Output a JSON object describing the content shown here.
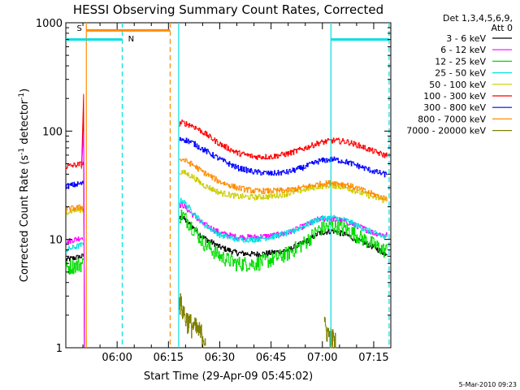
{
  "chart_data": {
    "type": "line",
    "title": "HESSI Observing Summary Count Rates, Corrected",
    "xlabel": "Start Time (29-Apr-09 05:45:02)",
    "ylabel_main": "Corrected Count Rate (s",
    "ylabel_sup1": "-1",
    "ylabel_mid": " detector",
    "ylabel_sup2": "-1",
    "ylabel_end": ")",
    "y_scale": "log",
    "ylim": [
      1,
      1000
    ],
    "xlim_minutes": [
      0,
      95
    ],
    "x_tick_labels": [
      {
        "t": 15,
        "label": "06:00"
      },
      {
        "t": 30,
        "label": "06:15"
      },
      {
        "t": 45,
        "label": "06:30"
      },
      {
        "t": 60,
        "label": "06:45"
      },
      {
        "t": 75,
        "label": "07:00"
      },
      {
        "t": 90,
        "label": "07:15"
      }
    ],
    "y_tick_labels": [
      {
        "v": 1,
        "label": "1"
      },
      {
        "v": 10,
        "label": "10"
      },
      {
        "v": 100,
        "label": "100"
      },
      {
        "v": 1000,
        "label": "1000"
      }
    ],
    "legend_header": [
      "Det 1,3,4,5,6,9,",
      "Att 0"
    ],
    "legend_position": "right",
    "timestamp": "5-Mar-2010 09:23",
    "flag_labels": [
      {
        "text": "S",
        "color": "#ff8c00"
      },
      {
        "text": "N",
        "color": "#00e0e0"
      }
    ],
    "series": [
      {
        "name": "3 - 6 keV",
        "color": "#000000",
        "values": [
          [
            0,
            6.5
          ],
          [
            5,
            7.0
          ],
          [
            34,
            16.0
          ],
          [
            37,
            13.0
          ],
          [
            40,
            10.5
          ],
          [
            45,
            8.5
          ],
          [
            50,
            7.5
          ],
          [
            55,
            7.3
          ],
          [
            60,
            7.5
          ],
          [
            65,
            8.0
          ],
          [
            70,
            9.5
          ],
          [
            74,
            11.5
          ],
          [
            78,
            12.0
          ],
          [
            82,
            11.0
          ],
          [
            86,
            9.5
          ],
          [
            90,
            8.5
          ],
          [
            93,
            7.5
          ]
        ]
      },
      {
        "name": "6 - 12 keV",
        "color": "#ff00ff",
        "values": [
          [
            0,
            9.5
          ],
          [
            5,
            10.5
          ],
          [
            34,
            21.0
          ],
          [
            37,
            17.0
          ],
          [
            40,
            14.0
          ],
          [
            45,
            11.5
          ],
          [
            50,
            10.5
          ],
          [
            55,
            10.5
          ],
          [
            60,
            10.8
          ],
          [
            65,
            11.5
          ],
          [
            70,
            13.5
          ],
          [
            74,
            15.5
          ],
          [
            78,
            15.5
          ],
          [
            82,
            14.5
          ],
          [
            86,
            13.0
          ],
          [
            90,
            11.5
          ],
          [
            93,
            11.0
          ]
        ]
      },
      {
        "name": "12 - 25 keV",
        "color": "#00dd00",
        "values": [
          [
            0,
            5.5
          ],
          [
            5,
            6.0
          ],
          [
            34,
            17.0
          ],
          [
            37,
            13.0
          ],
          [
            40,
            9.5
          ],
          [
            45,
            7.0
          ],
          [
            50,
            6.0
          ],
          [
            55,
            6.0
          ],
          [
            60,
            6.5
          ],
          [
            65,
            7.5
          ],
          [
            70,
            9.5
          ],
          [
            74,
            12.5
          ],
          [
            78,
            13.5
          ],
          [
            82,
            12.5
          ],
          [
            86,
            10.5
          ],
          [
            90,
            9.0
          ],
          [
            93,
            8.0
          ]
        ]
      },
      {
        "name": "25 - 50 keV",
        "color": "#00e0e0",
        "values": [
          [
            0,
            8.0
          ],
          [
            5,
            9.0
          ],
          [
            34,
            23.0
          ],
          [
            37,
            18.0
          ],
          [
            40,
            14.0
          ],
          [
            45,
            11.0
          ],
          [
            50,
            10.0
          ],
          [
            55,
            10.0
          ],
          [
            60,
            10.5
          ],
          [
            65,
            11.5
          ],
          [
            70,
            13.5
          ],
          [
            74,
            15.5
          ],
          [
            78,
            16.0
          ],
          [
            82,
            15.0
          ],
          [
            86,
            13.0
          ],
          [
            90,
            11.5
          ],
          [
            93,
            10.5
          ]
        ]
      },
      {
        "name": "50 - 100 keV",
        "color": "#cccc00",
        "values": [
          [
            0,
            18.0
          ],
          [
            5,
            19.0
          ],
          [
            34,
            42.0
          ],
          [
            37,
            38.0
          ],
          [
            40,
            32.0
          ],
          [
            45,
            27.0
          ],
          [
            50,
            25.0
          ],
          [
            55,
            24.5
          ],
          [
            60,
            25.0
          ],
          [
            65,
            26.5
          ],
          [
            70,
            29.0
          ],
          [
            74,
            31.0
          ],
          [
            78,
            31.5
          ],
          [
            82,
            30.0
          ],
          [
            86,
            27.0
          ],
          [
            90,
            24.5
          ],
          [
            93,
            23.0
          ]
        ]
      },
      {
        "name": "100 - 300 keV",
        "color": "#ff0000",
        "values": [
          [
            0,
            47.0
          ],
          [
            5,
            50.0
          ],
          [
            34,
            120.0
          ],
          [
            37,
            112.0
          ],
          [
            40,
            98.0
          ],
          [
            45,
            76.0
          ],
          [
            50,
            63.0
          ],
          [
            55,
            58.0
          ],
          [
            60,
            58.0
          ],
          [
            65,
            62.0
          ],
          [
            70,
            70.0
          ],
          [
            74,
            78.0
          ],
          [
            78,
            82.0
          ],
          [
            82,
            80.0
          ],
          [
            86,
            73.0
          ],
          [
            90,
            65.0
          ],
          [
            93,
            60.0
          ]
        ]
      },
      {
        "name": "300 - 800 keV",
        "color": "#0000ff",
        "values": [
          [
            0,
            31.0
          ],
          [
            5,
            33.0
          ],
          [
            34,
            85.0
          ],
          [
            37,
            78.0
          ],
          [
            40,
            68.0
          ],
          [
            45,
            55.0
          ],
          [
            50,
            46.0
          ],
          [
            55,
            42.0
          ],
          [
            60,
            40.5
          ],
          [
            65,
            42.0
          ],
          [
            70,
            47.0
          ],
          [
            74,
            53.0
          ],
          [
            78,
            55.0
          ],
          [
            82,
            52.0
          ],
          [
            86,
            47.0
          ],
          [
            90,
            42.5
          ],
          [
            93,
            40.0
          ]
        ]
      },
      {
        "name": "800 - 7000 keV",
        "color": "#ff8c00",
        "values": [
          [
            0,
            19.0
          ],
          [
            5,
            20.0
          ],
          [
            34,
            55.0
          ],
          [
            37,
            49.0
          ],
          [
            40,
            42.0
          ],
          [
            45,
            34.0
          ],
          [
            50,
            30.0
          ],
          [
            55,
            28.0
          ],
          [
            60,
            28.0
          ],
          [
            65,
            28.5
          ],
          [
            70,
            30.5
          ],
          [
            74,
            32.5
          ],
          [
            78,
            33.5
          ],
          [
            82,
            32.0
          ],
          [
            86,
            29.0
          ],
          [
            90,
            26.0
          ],
          [
            93,
            24.0
          ]
        ]
      },
      {
        "name": "7000 - 20000 keV",
        "color": "#808000",
        "values": [
          [
            33,
            2.8
          ],
          [
            35,
            1.9
          ],
          [
            36,
            1.7
          ],
          [
            38,
            1.5
          ],
          [
            40,
            1.3
          ],
          [
            41,
            1.2
          ],
          [
            75.5,
            1.6
          ],
          [
            76,
            1.5
          ],
          [
            77,
            1.3
          ],
          [
            78,
            1.2
          ],
          [
            79,
            1.1
          ]
        ]
      }
    ],
    "bars": [
      {
        "name": "S",
        "color": "#ff8c00",
        "t_start": 6.0,
        "t_end": 30.5,
        "level": 850
      },
      {
        "name": "N-1",
        "color": "#00e0e0",
        "t_start": 0,
        "t_end": 16.5,
        "level": 700
      },
      {
        "name": "N-2",
        "color": "#00e0e0",
        "t_start": 77.5,
        "t_end": 94.5,
        "level": 700
      }
    ],
    "vlines": [
      {
        "t": 16.5,
        "color": "#00e0e0",
        "style": "dashed"
      },
      {
        "t": 30.5,
        "color": "#ff8c00",
        "style": "dashed"
      },
      {
        "t": 94.5,
        "color": "#00e0e0",
        "style": "dashed"
      },
      {
        "t": 6.0,
        "color": "#ff8c00",
        "style": "solid"
      },
      {
        "t": 33.0,
        "color": "#00e0e0",
        "style": "solid"
      },
      {
        "t": 77.5,
        "color": "#00e0e0",
        "style": "solid"
      }
    ]
  }
}
